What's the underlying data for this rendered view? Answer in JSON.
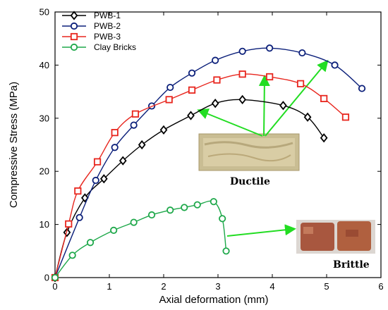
{
  "chart_data": {
    "type": "line",
    "title": "",
    "xlabel": "Axial deformation (mm)",
    "ylabel": "Compressive Stress (MPa)",
    "xlim": [
      0,
      6
    ],
    "ylim": [
      0,
      50
    ],
    "xticks": [
      "0",
      "1",
      "2",
      "3",
      "4",
      "5",
      "6"
    ],
    "yticks": [
      "0",
      "10",
      "20",
      "30",
      "40",
      "50"
    ],
    "grid": false,
    "legend_position": "top-left",
    "series": [
      {
        "name": "PWB-1",
        "color": "#000000",
        "marker": "diamond",
        "points": [
          [
            0,
            0
          ],
          [
            0.22,
            8.5
          ],
          [
            0.55,
            15.0
          ],
          [
            0.9,
            18.6
          ],
          [
            1.25,
            22.0
          ],
          [
            1.6,
            25.0
          ],
          [
            2.0,
            27.8
          ],
          [
            2.5,
            30.5
          ],
          [
            2.95,
            32.8
          ],
          [
            3.45,
            33.5
          ],
          [
            4.2,
            32.4
          ],
          [
            4.65,
            30.2
          ],
          [
            4.95,
            26.3
          ]
        ]
      },
      {
        "name": "PWB-2",
        "color": "#0b1f7a",
        "marker": "circle",
        "points": [
          [
            0,
            0
          ],
          [
            0.45,
            11.3
          ],
          [
            0.75,
            18.3
          ],
          [
            1.1,
            24.5
          ],
          [
            1.45,
            28.7
          ],
          [
            1.78,
            32.3
          ],
          [
            2.12,
            35.8
          ],
          [
            2.52,
            38.5
          ],
          [
            2.95,
            40.9
          ],
          [
            3.45,
            42.6
          ],
          [
            3.95,
            43.2
          ],
          [
            4.55,
            42.3
          ],
          [
            5.15,
            40.0
          ],
          [
            5.65,
            35.6
          ]
        ]
      },
      {
        "name": "PWB-3",
        "color": "#e8261e",
        "marker": "square",
        "points": [
          [
            0,
            0
          ],
          [
            0.25,
            10.1
          ],
          [
            0.42,
            16.3
          ],
          [
            0.78,
            21.8
          ],
          [
            1.1,
            27.3
          ],
          [
            1.48,
            30.8
          ],
          [
            2.1,
            33.5
          ],
          [
            2.52,
            35.3
          ],
          [
            2.98,
            37.2
          ],
          [
            3.45,
            38.3
          ],
          [
            3.95,
            37.8
          ],
          [
            4.52,
            36.5
          ],
          [
            4.95,
            33.7
          ],
          [
            5.35,
            30.2
          ]
        ]
      },
      {
        "name": "Clay Bricks",
        "color": "#1ea84a",
        "marker": "circle",
        "points": [
          [
            0,
            0
          ],
          [
            0.32,
            4.2
          ],
          [
            0.65,
            6.6
          ],
          [
            1.08,
            8.9
          ],
          [
            1.45,
            10.4
          ],
          [
            1.78,
            11.8
          ],
          [
            2.12,
            12.7
          ],
          [
            2.38,
            13.2
          ],
          [
            2.62,
            13.7
          ],
          [
            2.92,
            14.3
          ],
          [
            3.08,
            11.1
          ],
          [
            3.15,
            5.0
          ]
        ]
      }
    ],
    "annotations": {
      "ductile_label": "Ductile",
      "brittle_label": "Brittle"
    }
  }
}
